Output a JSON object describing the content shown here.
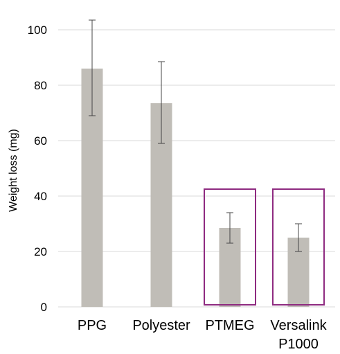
{
  "chart_data": {
    "type": "bar",
    "title": "",
    "xlabel": "",
    "ylabel": "Weight loss (mg)",
    "ylim": [
      0,
      100
    ],
    "yticks": [
      "0",
      "20",
      "40",
      "60",
      "80",
      "100"
    ],
    "grid": true,
    "categories": [
      {
        "lines": [
          "PPG"
        ]
      },
      {
        "lines": [
          "Polyester"
        ]
      },
      {
        "lines": [
          "PTMEG"
        ]
      },
      {
        "lines": [
          "Versalink",
          "P1000"
        ]
      }
    ],
    "values": [
      86,
      73.5,
      28.5,
      25
    ],
    "error_low": [
      69,
      59,
      23,
      20
    ],
    "error_high": [
      103.5,
      88.5,
      34,
      30
    ],
    "highlighted": [
      2,
      3
    ],
    "colors": {
      "bar": "#c0bdb7",
      "gridline": "#d9d9d9",
      "error_bar": "#444444",
      "highlight_box": "#8e2a80"
    }
  }
}
